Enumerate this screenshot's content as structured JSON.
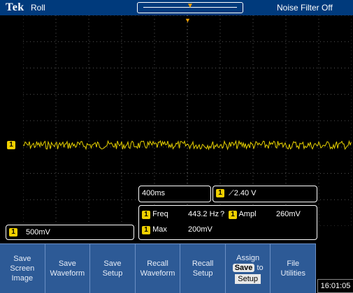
{
  "header": {
    "brand": "Tek",
    "mode": "Roll",
    "noise_filter": "Noise Filter Off"
  },
  "channel": {
    "label": "1",
    "vertical_scale": "500mV"
  },
  "timebase": {
    "value": "400ms"
  },
  "trigger": {
    "level": "2.40 V"
  },
  "measurements": [
    {
      "ch": "1",
      "name": "Freq",
      "value": "443.2 Hz",
      "flag": "?"
    },
    {
      "ch": "1",
      "name": "Ampl",
      "value": "260mV"
    },
    {
      "ch": "1",
      "name": "Max",
      "value": "200mV"
    }
  ],
  "menu": {
    "items": [
      {
        "l1": "Save",
        "l2": "Screen Image"
      },
      {
        "l1": "Save",
        "l2": "Waveform"
      },
      {
        "l1": "Save",
        "l2": "Setup"
      },
      {
        "l1": "Recall",
        "l2": "Waveform"
      },
      {
        "l1": "Recall",
        "l2": "Setup"
      },
      {
        "l1": "File",
        "l2": "Utilities"
      }
    ],
    "assign": {
      "l1": "Assign",
      "save": "Save",
      "to": "to",
      "setup": "Setup"
    }
  },
  "clock": "16:01:05",
  "colors": {
    "channel1": "#f0d000",
    "trigger": "#f4a000",
    "menu_bg": "#2d5a96",
    "topbar": "#003a7c"
  }
}
